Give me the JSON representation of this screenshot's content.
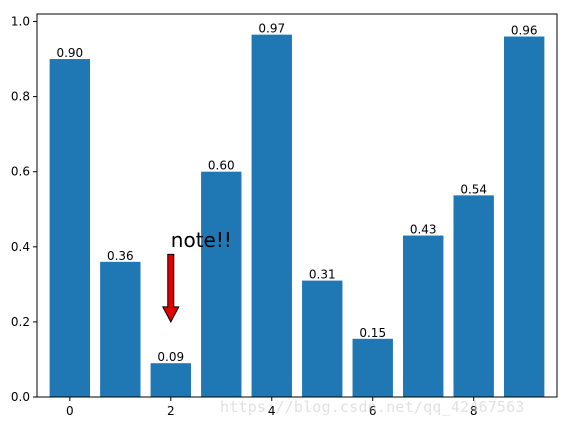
{
  "chart_data": {
    "type": "bar",
    "categories": [
      0,
      1,
      2,
      3,
      4,
      5,
      6,
      7,
      8,
      9
    ],
    "values": [
      0.9,
      0.36,
      0.09,
      0.6,
      0.965,
      0.31,
      0.155,
      0.43,
      0.537,
      0.96
    ],
    "value_labels": [
      "0.90",
      "0.36",
      "0.09",
      "0.60",
      "0.97",
      "0.31",
      "0.15",
      "0.43",
      "0.54",
      "0.96"
    ],
    "title": "",
    "xlabel": "",
    "ylabel": "",
    "xlim": [
      -0.65,
      9.65
    ],
    "ylim": [
      0,
      1.02
    ],
    "xticks": [
      0,
      2,
      4,
      6,
      8
    ],
    "xtick_labels": [
      "0",
      "2",
      "4",
      "6",
      "8"
    ],
    "yticks": [
      0.0,
      0.2,
      0.4,
      0.6,
      0.8,
      1.0
    ],
    "ytick_labels": [
      "0.0",
      "0.2",
      "0.4",
      "0.6",
      "0.8",
      "1.0"
    ],
    "grid": false,
    "legend": "none",
    "bar_color": "#1f77b4",
    "annotation": {
      "text": "note!!",
      "xy": [
        2,
        0.2
      ],
      "xytext": [
        2,
        0.4
      ],
      "arrow_color": "#e00000"
    }
  },
  "watermark": "https://blog.csdn.net/qq_42467563"
}
